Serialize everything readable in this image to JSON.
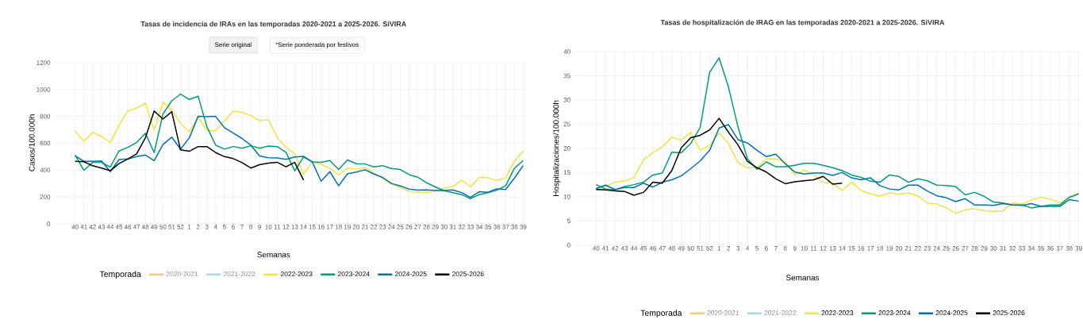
{
  "chart_data": [
    {
      "type": "line",
      "title": "Tasas de incidencia de IRAs en las temporadas 2020-2021 a 2025-2026. SiVIRA",
      "xlabel": "Semanas",
      "ylabel": "Casos/100.000h",
      "legend_title": "Temporada",
      "annotations": [
        "Serie original",
        "*Serie ponderada por festivos"
      ],
      "categories": [
        "40",
        "41",
        "42",
        "43",
        "44",
        "45",
        "46",
        "47",
        "48",
        "49",
        "50",
        "51",
        "52",
        "1",
        "2",
        "3",
        "4",
        "5",
        "6",
        "7",
        "8",
        "9",
        "10",
        "11",
        "12",
        "13",
        "14",
        "15",
        "16",
        "17",
        "18",
        "19",
        "20",
        "21",
        "22",
        "23",
        "24",
        "25",
        "26",
        "27",
        "28",
        "29",
        "30",
        "31",
        "32",
        "33",
        "34",
        "35",
        "36",
        "37",
        "38",
        "39"
      ],
      "series": [
        {
          "name": "2020-2021",
          "color": "#f5c97a",
          "values": [
            null,
            null,
            null,
            null,
            null,
            null,
            null,
            null,
            null,
            null,
            null,
            null,
            null,
            null,
            null,
            null,
            null,
            null,
            null,
            null,
            null,
            null,
            null,
            null,
            null,
            null,
            null,
            null,
            null,
            null,
            null,
            null,
            null,
            null,
            null,
            null,
            null,
            null,
            null,
            null,
            null,
            null,
            null,
            null,
            null,
            null,
            null,
            null,
            null,
            null,
            null,
            null
          ]
        },
        {
          "name": "2021-2022",
          "color": "#a6d8f0",
          "values": [
            null,
            null,
            null,
            null,
            null,
            null,
            null,
            null,
            null,
            null,
            null,
            null,
            null,
            null,
            null,
            null,
            null,
            null,
            null,
            null,
            null,
            null,
            null,
            null,
            null,
            null,
            null,
            null,
            null,
            null,
            null,
            null,
            null,
            null,
            null,
            null,
            null,
            null,
            null,
            null,
            null,
            null,
            null,
            null,
            null,
            null,
            null,
            null,
            null,
            null,
            null,
            null
          ]
        },
        {
          "name": "2022-2023",
          "color": "#f0e442",
          "values": [
            690,
            615,
            680,
            650,
            605,
            733,
            841,
            861,
            898,
            698,
            906,
            847,
            749,
            684,
            796,
            694,
            694,
            767,
            841,
            828,
            806,
            768,
            776,
            644,
            569,
            522,
            368,
            461,
            443,
            412,
            365,
            414,
            408,
            418,
            378,
            339,
            294,
            270,
            240,
            236,
            233,
            242,
            264,
            278,
            325,
            274,
            345,
            343,
            323,
            343,
            467,
            542
          ]
        },
        {
          "name": "2023-2024",
          "color": "#009e73",
          "values": [
            512,
            398,
            457,
            457,
            422,
            542,
            569,
            605,
            674,
            530,
            818,
            916,
            966,
            926,
            950,
            723,
            585,
            556,
            575,
            562,
            581,
            562,
            579,
            575,
            532,
            394,
            497,
            461,
            457,
            471,
            404,
            475,
            447,
            445,
            424,
            433,
            412,
            404,
            366,
            347,
            305,
            274,
            246,
            231,
            217,
            187,
            217,
            231,
            250,
            282,
            412,
            471
          ]
        },
        {
          "name": "2024-2025",
          "color": "#0072b2",
          "values": [
            505,
            465,
            465,
            468,
            388,
            478,
            482,
            500,
            512,
            470,
            590,
            645,
            555,
            640,
            800,
            798,
            800,
            715,
            675,
            635,
            585,
            505,
            492,
            490,
            480,
            498,
            502,
            460,
            317,
            388,
            282,
            372,
            385,
            402,
            370,
            345,
            300,
            282,
            258,
            250,
            252,
            248,
            248,
            252,
            232,
            197,
            238,
            235,
            260,
            255,
            339,
            433
          ]
        },
        {
          "name": "2025-2026",
          "color": "#000000",
          "values": [
            465,
            462,
            432,
            415,
            395,
            448,
            482,
            520,
            640,
            840,
            780,
            835,
            550,
            540,
            575,
            575,
            530,
            500,
            485,
            455,
            415,
            440,
            452,
            458,
            424,
            457,
            325,
            null,
            null,
            null,
            null,
            null,
            null,
            null,
            null,
            null,
            null,
            null,
            null,
            null,
            null,
            null,
            null,
            null,
            null,
            null,
            null,
            null,
            null,
            null,
            null,
            null
          ]
        }
      ],
      "ylim": [
        0,
        1200
      ],
      "yticks": [
        0,
        200,
        400,
        600,
        800,
        1000,
        1200
      ],
      "grid": true,
      "legend": "bottom"
    },
    {
      "type": "line",
      "title": "Tasas de hospitalización de IRAG en las temporadas 2020-2021 a 2025-2026. SiVIRA",
      "xlabel": "Semanas",
      "ylabel": "Hospitalizaciones/100.000h",
      "legend_title": "Temporada",
      "categories": [
        "40",
        "41",
        "42",
        "43",
        "44",
        "45",
        "46",
        "47",
        "48",
        "49",
        "50",
        "51",
        "52",
        "1",
        "2",
        "3",
        "4",
        "5",
        "6",
        "7",
        "8",
        "9",
        "10",
        "11",
        "12",
        "13",
        "14",
        "15",
        "16",
        "17",
        "18",
        "19",
        "20",
        "21",
        "22",
        "23",
        "24",
        "25",
        "26",
        "27",
        "28",
        "29",
        "30",
        "31",
        "32",
        "33",
        "34",
        "35",
        "36",
        "37",
        "38",
        "39"
      ],
      "series": [
        {
          "name": "2020-2021",
          "color": "#f5c97a",
          "values": [
            null,
            null,
            null,
            null,
            null,
            null,
            null,
            null,
            null,
            null,
            null,
            null,
            null,
            null,
            null,
            null,
            null,
            null,
            null,
            null,
            null,
            null,
            null,
            null,
            null,
            null,
            null,
            null,
            null,
            null,
            null,
            null,
            null,
            null,
            null,
            null,
            null,
            null,
            null,
            null,
            null,
            null,
            null,
            null,
            null,
            null,
            null,
            null,
            null,
            null,
            null,
            null
          ]
        },
        {
          "name": "2021-2022",
          "color": "#a6d8f0",
          "values": [
            null,
            null,
            null,
            null,
            null,
            null,
            null,
            null,
            null,
            null,
            null,
            null,
            null,
            null,
            null,
            null,
            null,
            null,
            null,
            null,
            null,
            null,
            null,
            null,
            null,
            null,
            null,
            null,
            null,
            null,
            null,
            null,
            null,
            null,
            null,
            null,
            null,
            null,
            null,
            null,
            null,
            null,
            null,
            null,
            null,
            null,
            null,
            null,
            null,
            null,
            null,
            null
          ]
        },
        {
          "name": "2022-2023",
          "color": "#f0e442",
          "values": [
            11.6,
            12.2,
            13.0,
            13.2,
            14.0,
            17.6,
            19.1,
            20.3,
            22.3,
            21.7,
            23.3,
            19.6,
            20.6,
            23.2,
            21.0,
            17.0,
            16.0,
            16.0,
            17.8,
            17.8,
            17.2,
            14.5,
            15.5,
            14.6,
            13.0,
            12.8,
            11.3,
            13.0,
            11.3,
            10.6,
            10.1,
            10.8,
            10.5,
            10.8,
            10.2,
            8.7,
            8.5,
            7.7,
            6.6,
            7.3,
            7.5,
            7.1,
            7.0,
            7.1,
            8.7,
            8.5,
            9.3,
            9.9,
            9.5,
            8.7,
            9.7,
            10.8
          ]
        },
        {
          "name": "2023-2024",
          "color": "#009e73",
          "values": [
            12.5,
            11.6,
            11.4,
            12.1,
            12.5,
            13.0,
            14.5,
            14.9,
            19.2,
            19.1,
            21.0,
            24.3,
            35.7,
            38.7,
            32.6,
            24.4,
            17.8,
            15.7,
            17.2,
            16.2,
            16.2,
            16.5,
            16.9,
            16.9,
            16.5,
            16.0,
            15.4,
            14.5,
            14.0,
            13.2,
            13.0,
            14.5,
            14.2,
            13.0,
            13.7,
            13.3,
            12.4,
            12.3,
            12.1,
            10.4,
            10.9,
            10.1,
            8.9,
            8.7,
            8.3,
            8.3,
            7.7,
            8.0,
            8.3,
            8.3,
            9.9,
            10.6
          ]
        },
        {
          "name": "2024-2025",
          "color": "#0072b2",
          "values": [
            11.7,
            12.4,
            11.5,
            11.9,
            11.9,
            12.8,
            12.0,
            13.0,
            13.5,
            14.3,
            15.8,
            17.4,
            19.6,
            24.2,
            24.9,
            21.8,
            21.1,
            19.6,
            18.3,
            18.8,
            16.8,
            15.1,
            14.7,
            14.9,
            14.9,
            14.4,
            15.0,
            13.9,
            13.5,
            13.9,
            12.3,
            11.6,
            11.4,
            12.4,
            12.4,
            11.2,
            10.2,
            9.8,
            9.0,
            9.6,
            8.3,
            8.3,
            8.2,
            8.6,
            8.3,
            8.2,
            8.6,
            8.0,
            8.0,
            8.0,
            9.4,
            9.1
          ]
        },
        {
          "name": "2025-2026",
          "color": "#000000",
          "values": [
            11.5,
            11.4,
            11.2,
            11.1,
            10.3,
            10.9,
            13.0,
            12.8,
            15.4,
            20.1,
            22.2,
            22.7,
            23.8,
            26.2,
            23.3,
            20.7,
            17.3,
            16.0,
            15.1,
            13.7,
            12.7,
            13.1,
            13.3,
            13.5,
            14.2,
            12.6,
            12.8,
            null,
            null,
            null,
            null,
            null,
            null,
            null,
            null,
            null,
            null,
            null,
            null,
            null,
            null,
            null,
            null,
            null,
            null,
            null,
            null,
            null,
            null,
            null,
            null,
            null
          ]
        }
      ],
      "ylim": [
        0,
        40
      ],
      "yticks": [
        0,
        5,
        10,
        15,
        20,
        25,
        30,
        35,
        40
      ],
      "grid": true,
      "legend": "bottom"
    }
  ]
}
